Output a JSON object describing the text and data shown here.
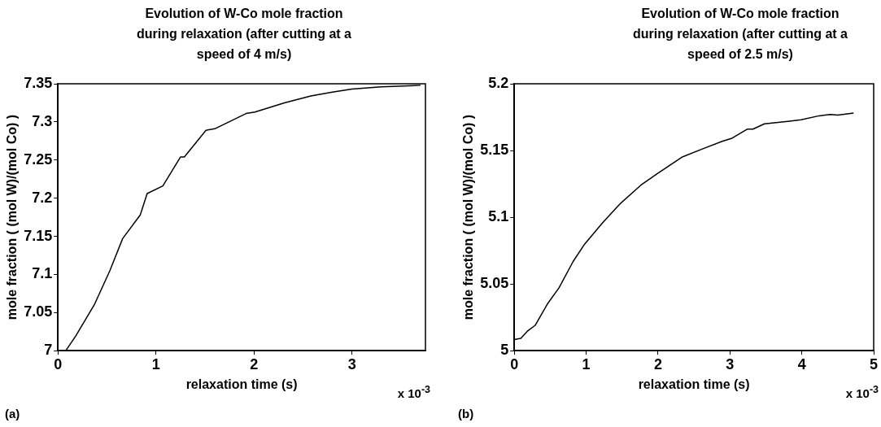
{
  "chart_data": [
    {
      "type": "line",
      "title": "Evolution of W-Co mole fraction during relaxation (after cutting at a speed of 4 m/s)",
      "xlabel": "relaxation time (s)",
      "ylabel": "mole fraction ( (mol W)/(mol Co) )",
      "annotations": [
        "x 10$^{-3}$",
        "(a)"
      ],
      "xlim": [
        0,
        3.75
      ],
      "xticks": [
        0,
        1,
        2,
        3
      ],
      "ylim": [
        7,
        7.35
      ],
      "yticks": [
        7,
        7.05,
        7.1,
        7.15,
        7.2,
        7.25,
        7.3,
        7.35
      ],
      "series": [
        {
          "color": "#000000",
          "x": [
            0,
            0.08,
            0.18,
            0.37,
            0.53,
            0.66,
            0.84,
            0.91,
            1.07,
            1.25,
            1.29,
            1.51,
            1.6,
            1.92,
            2.01,
            2.31,
            2.58,
            2.8,
            3.0,
            3.3,
            3.7
          ],
          "values": [
            7.0,
            7.0,
            7.019,
            7.06,
            7.105,
            7.147,
            7.178,
            7.206,
            7.216,
            7.254,
            7.254,
            7.289,
            7.291,
            7.311,
            7.313,
            7.325,
            7.334,
            7.339,
            7.343,
            7.346,
            7.348
          ]
        }
      ]
    },
    {
      "type": "line",
      "title": "Evolution of W-Co mole fraction during relaxation (after cutting at a speed of 2.5 m/s)",
      "xlabel": "relaxation time (s)",
      "ylabel": "mole fraction ( (mol W)/(mol Co) )",
      "annotations": [
        "x 10$^{-3}$",
        "(b)"
      ],
      "xlim": [
        0,
        5
      ],
      "xticks": [
        0,
        1,
        2,
        3,
        4,
        5
      ],
      "ylim": [
        5,
        5.2
      ],
      "yticks": [
        5,
        5.05,
        5.1,
        5.15,
        5.2
      ],
      "series": [
        {
          "color": "#000000",
          "x": [
            0,
            0.09,
            0.19,
            0.29,
            0.46,
            0.62,
            0.82,
            0.98,
            1.23,
            1.47,
            1.76,
            2.0,
            2.33,
            2.61,
            2.9,
            3.02,
            3.24,
            3.32,
            3.48,
            3.67,
            3.83,
            3.99,
            4.24,
            4.4,
            4.5,
            4.72
          ],
          "values": [
            5.0083,
            5.0093,
            5.015,
            5.019,
            5.035,
            5.047,
            5.067,
            5.08,
            5.096,
            5.11,
            5.124,
            5.133,
            5.145,
            5.151,
            5.157,
            5.159,
            5.166,
            5.166,
            5.17,
            5.171,
            5.172,
            5.173,
            5.176,
            5.177,
            5.1765,
            5.178
          ]
        }
      ]
    }
  ]
}
